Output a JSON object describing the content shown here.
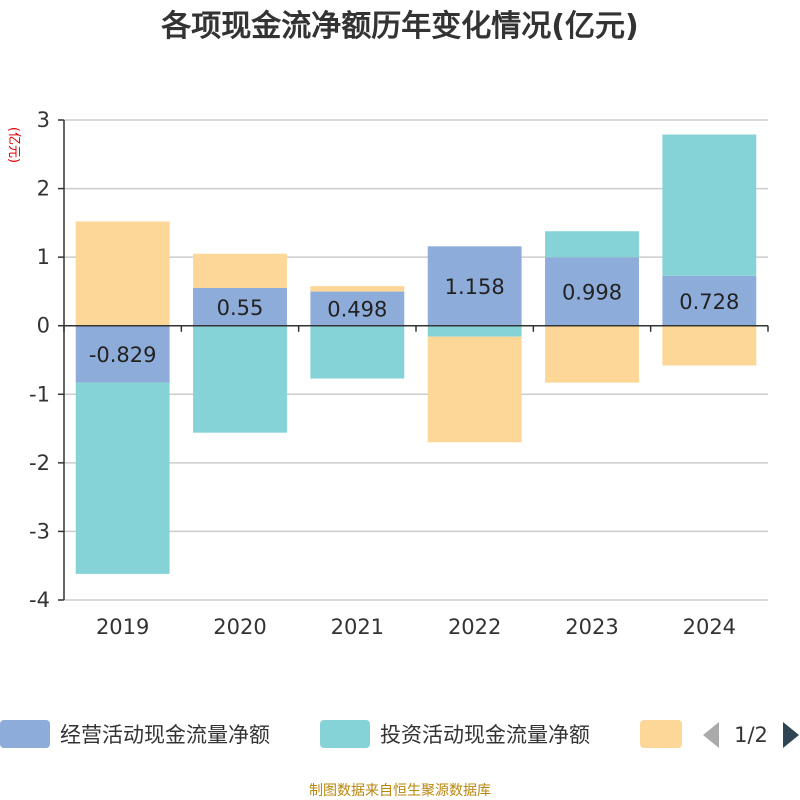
{
  "title": "各项现金流净额历年变化情况(亿元)",
  "unit_label": "(亿元)",
  "footer": "制图数据来自恒生聚源数据库",
  "legend_page": "1/2",
  "colors": {
    "operating": "#8eacd9",
    "investing": "#85d3d7",
    "financing": "#fdd797",
    "grid": "#cccccc",
    "axis": "#333333",
    "page_arrow_inactive": "#aaaaaa",
    "page_arrow_active": "#2f4554"
  },
  "chart_data": {
    "type": "bar",
    "stacked": true,
    "categories": [
      "2019",
      "2020",
      "2021",
      "2022",
      "2023",
      "2024"
    ],
    "series": [
      {
        "name": "经营活动现金流量净额",
        "values": [
          -0.829,
          0.55,
          0.498,
          1.158,
          0.998,
          0.728
        ],
        "color_key": "operating",
        "labels_shown": true
      },
      {
        "name": "投资活动现金流量净额",
        "values": [
          -2.79,
          -1.56,
          -0.77,
          -0.16,
          0.38,
          2.06
        ],
        "color_key": "investing",
        "labels_shown": false
      },
      {
        "name": "",
        "values": [
          1.52,
          0.5,
          0.08,
          -1.54,
          -0.83,
          -0.58
        ],
        "color_key": "financing",
        "labels_shown": false
      }
    ],
    "ylim": [
      -4,
      3
    ],
    "yticks": [
      3,
      2,
      1,
      0,
      -1,
      -2,
      -3,
      -4
    ],
    "grid": true,
    "legend_position": "bottom"
  }
}
